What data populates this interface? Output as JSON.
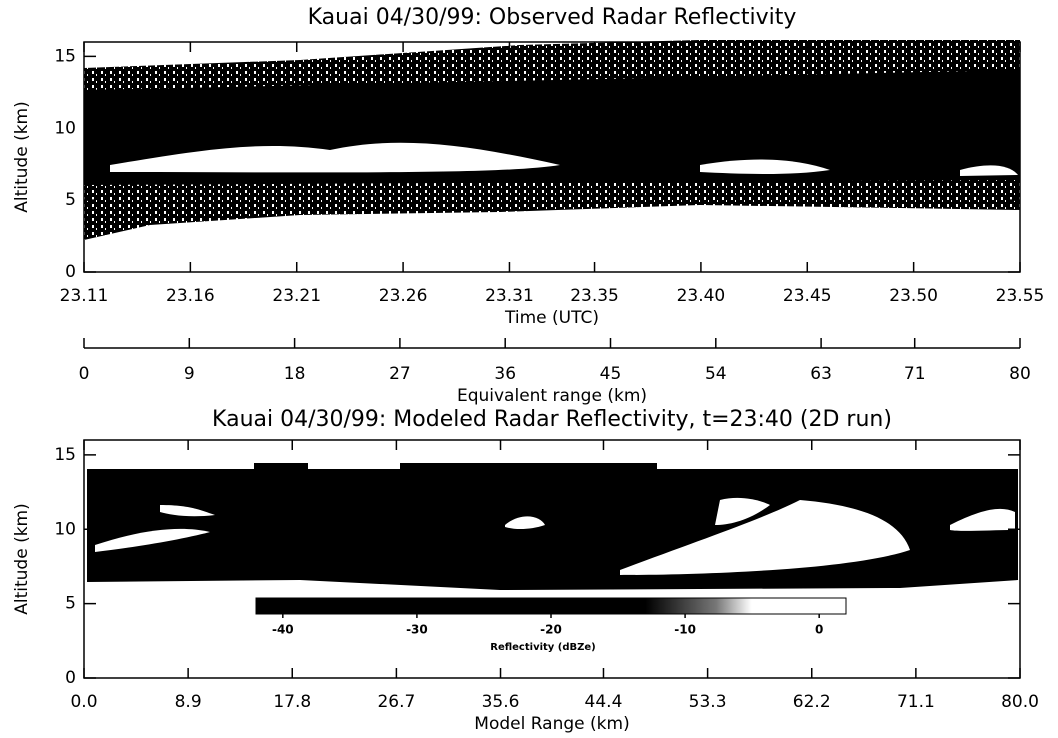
{
  "chart_data": [
    {
      "type": "image",
      "title": "Kauai 04/30/99: Observed Radar Reflectivity",
      "x_label": "Time (UTC)",
      "y_label": "Altitude (km)",
      "xlim": [
        23.11,
        23.55
      ],
      "xticks": [
        23.11,
        23.16,
        23.21,
        23.26,
        23.31,
        23.35,
        {
          "value": 23.4,
          "label": "23.40"
        },
        23.45,
        {
          "value": 23.5,
          "label": "23.50"
        },
        23.55
      ],
      "ylim": [
        0,
        16
      ],
      "yticks": [
        0,
        5,
        10,
        15
      ],
      "x2_label": "Equivalent range (km)",
      "x2lim": [
        0,
        80
      ],
      "x2ticks": [
        0,
        9,
        18,
        27,
        36,
        45,
        54,
        63,
        71,
        80
      ]
    },
    {
      "type": "image",
      "title": "Kauai 04/30/99: Modeled Radar Reflectivity, t=23:40 (2D run)",
      "x_label": "Model Range (km)",
      "y_label": "Altitude (km)",
      "xlim": [
        0,
        80
      ],
      "xticks": [
        {
          "value": 0,
          "label": "0.0"
        },
        8.9,
        17.8,
        26.7,
        35.6,
        44.4,
        53.3,
        62.2,
        71.1,
        {
          "value": 80,
          "label": "80.0"
        }
      ],
      "ylim": [
        0,
        16
      ],
      "yticks": [
        0,
        5,
        10,
        15
      ],
      "colorbar": {
        "label": "Reflectivity (dBZe)",
        "lim": [
          -42,
          2
        ],
        "ticks": [
          -40,
          -30,
          -20,
          -10,
          0
        ]
      }
    }
  ]
}
